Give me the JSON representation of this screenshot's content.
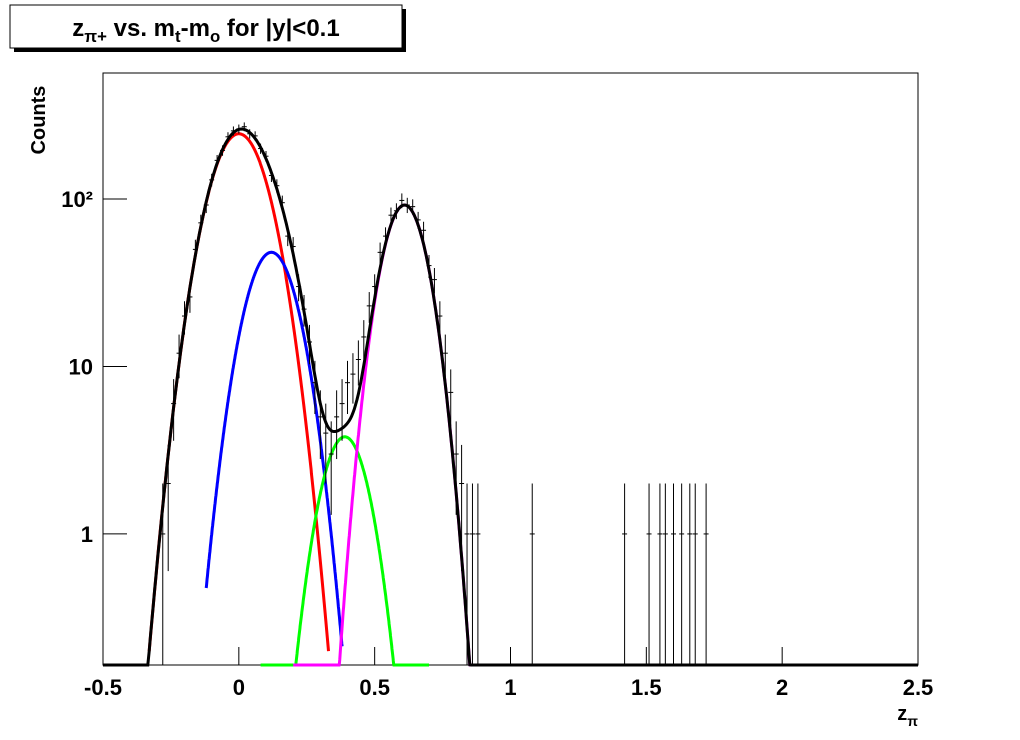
{
  "chart_data": {
    "type": "errorbar",
    "title": [
      {
        "text": "z"
      },
      {
        "text": "π+",
        "sub": true
      },
      {
        "text": " vs. m"
      },
      {
        "text": "t",
        "sub": true
      },
      {
        "text": "-m"
      },
      {
        "text": "o",
        "sub": true
      },
      {
        "text": " for |y|<0.1"
      }
    ],
    "xlabel": [
      {
        "text": "z"
      },
      {
        "text": "π",
        "sub": true
      }
    ],
    "ylabel": "Counts",
    "log_y": true,
    "xlim": [
      -0.5,
      2.5
    ],
    "xticks": [
      -0.5,
      0,
      0.5,
      1,
      1.5,
      2,
      2.5
    ],
    "ylim": [
      0.165,
      565
    ],
    "yticks": [
      1,
      10,
      {
        "value": 100,
        "label": "10²"
      }
    ],
    "color": "#000000",
    "x": [
      -0.28,
      -0.26,
      -0.24,
      -0.22,
      -0.2,
      -0.18,
      -0.16,
      -0.14,
      -0.12,
      -0.1,
      -0.08,
      -0.06,
      -0.04,
      -0.02,
      0,
      0.02,
      0.04,
      0.06,
      0.08,
      0.1,
      0.12,
      0.14,
      0.16,
      0.18,
      0.2,
      0.22,
      0.24,
      0.26,
      0.28,
      0.3,
      0.32,
      0.34,
      0.36,
      0.38,
      0.4,
      0.42,
      0.44,
      0.46,
      0.48,
      0.5,
      0.52,
      0.54,
      0.56,
      0.58,
      0.6,
      0.62,
      0.64,
      0.66,
      0.68,
      0.7,
      0.72,
      0.74,
      0.76,
      0.78,
      0.8,
      0.82,
      0.84,
      0.86,
      0.88,
      1.08,
      1.42,
      1.51,
      1.55,
      1.57,
      1.6,
      1.63,
      1.66,
      1.68,
      1.72
    ],
    "values": [
      1,
      2,
      6,
      12,
      20,
      26,
      50,
      72,
      92,
      130,
      170,
      195,
      235,
      255,
      262,
      270,
      245,
      238,
      200,
      180,
      138,
      120,
      95,
      60,
      52,
      30,
      22,
      14,
      8,
      5,
      4,
      3,
      5,
      6,
      8,
      9,
      11,
      15,
      23,
      30,
      48,
      60,
      80,
      85,
      98,
      92,
      90,
      75,
      65,
      40,
      33,
      20,
      12,
      7,
      3,
      2,
      1,
      1,
      1,
      1,
      1,
      1,
      1,
      1,
      1,
      1,
      1,
      1,
      1
    ],
    "errors": [
      1,
      1.4,
      2.4,
      3.5,
      4.5,
      5.1,
      7.1,
      8.5,
      9.6,
      11.4,
      13,
      14,
      15.3,
      16,
      16.2,
      16.4,
      15.7,
      15.4,
      14.1,
      13.4,
      11.7,
      11,
      9.7,
      7.7,
      7.2,
      5.5,
      4.7,
      3.7,
      2.8,
      2.2,
      2,
      1.7,
      2.2,
      2.4,
      2.8,
      3,
      3.3,
      3.9,
      4.8,
      5.5,
      6.9,
      7.7,
      8.9,
      9.2,
      9.9,
      9.6,
      9.5,
      8.7,
      8.1,
      6.3,
      5.7,
      4.5,
      3.5,
      2.6,
      1.7,
      1.4,
      1,
      1,
      1,
      1,
      1,
      1,
      1,
      1,
      1,
      1,
      1,
      1,
      1
    ],
    "fits": [
      {
        "color": "#ff0000",
        "amplitude": 245,
        "mean": 0,
        "sigma": 0.0875,
        "range": [
          -0.33,
          0.33
        ]
      },
      {
        "color": "#0000ff",
        "amplitude": 48,
        "mean": 0.12,
        "sigma": 0.079,
        "range": [
          -0.12,
          0.38
        ]
      },
      {
        "color": "#00ff00",
        "amplitude": 3.8,
        "mean": 0.39,
        "sigma": 0.072,
        "range": [
          0.08,
          0.7
        ]
      },
      {
        "color": "#ff00ff",
        "amplitude": 92,
        "mean": 0.61,
        "sigma": 0.0675,
        "range": [
          0.2,
          0.9
        ]
      }
    ],
    "total": {
      "color": "#000000",
      "range": [
        -0.5,
        2.5
      ]
    }
  }
}
